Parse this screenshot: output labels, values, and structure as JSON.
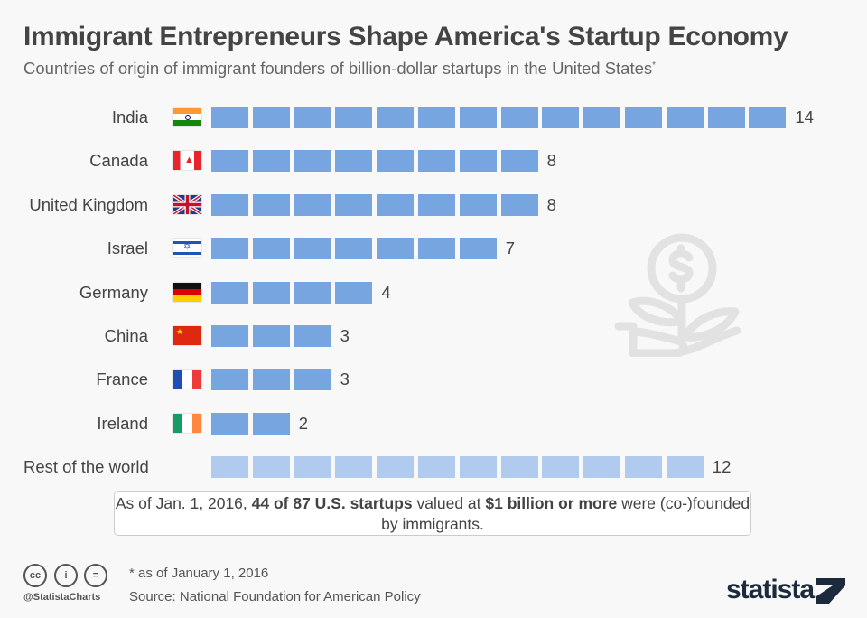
{
  "title": "Immigrant Entrepreneurs Shape America's Startup Economy",
  "subtitle": "Countries of origin of immigrant founders of billion-dollar startups in the United States",
  "subtitle_mark": "*",
  "note": {
    "pre": "As of Jan. 1, 2016, ",
    "bold1": "44 of 87 U.S. startups",
    "mid": " valued at ",
    "bold2": "$1 billion or more",
    "post": " were (co-)founded by immigrants."
  },
  "footnote": "* as of January 1, 2016",
  "source": "Source: National Foundation for American Policy",
  "handle": "@StatistaCharts",
  "logo": "statista",
  "license_icons": [
    "cc-icon",
    "by-icon",
    "nd-icon"
  ],
  "colors": {
    "bar": "#76a5e0",
    "rest_bar": "#b1cbee",
    "background": "#f8f8f8"
  },
  "decoration": "money-plant-hand-icon",
  "chart_data": {
    "type": "bar",
    "orientation": "horizontal",
    "style": "pictogram-squares",
    "categories": [
      "India",
      "Canada",
      "United Kingdom",
      "Israel",
      "Germany",
      "China",
      "France",
      "Ireland",
      "Rest of the world"
    ],
    "flags": [
      "india-flag-icon",
      "canada-flag-icon",
      "uk-flag-icon",
      "israel-flag-icon",
      "germany-flag-icon",
      "china-flag-icon",
      "france-flag-icon",
      "ireland-flag-icon",
      null
    ],
    "values": [
      14,
      8,
      8,
      7,
      4,
      3,
      3,
      2,
      12
    ],
    "title": "Immigrant Entrepreneurs Shape America's Startup Economy",
    "xlabel": "",
    "ylabel": "",
    "grid": false
  }
}
